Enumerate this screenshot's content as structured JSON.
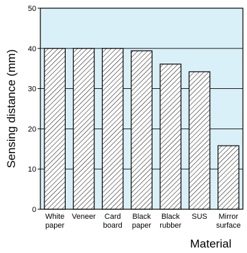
{
  "chart_data": {
    "type": "bar",
    "categories": [
      [
        "White",
        "paper"
      ],
      [
        "Veneer"
      ],
      [
        "Card",
        "board"
      ],
      [
        "Black",
        "paper"
      ],
      [
        "Black",
        "rubber"
      ],
      [
        "SUS"
      ],
      [
        "Mirror",
        "surface"
      ]
    ],
    "values": [
      40,
      40,
      40,
      39.4,
      36.1,
      34.2,
      15.8
    ],
    "ylabel": "Sensing distance (mm)",
    "xlabel": "Material",
    "ylim": [
      0,
      50
    ],
    "yticks": [
      0,
      10,
      20,
      30,
      40,
      50
    ],
    "grid": true,
    "colors": {
      "plot_background": "#daf0f8",
      "bar_fill": "#ffffff",
      "bar_hatch": "#000000",
      "grid": "#000000"
    }
  }
}
